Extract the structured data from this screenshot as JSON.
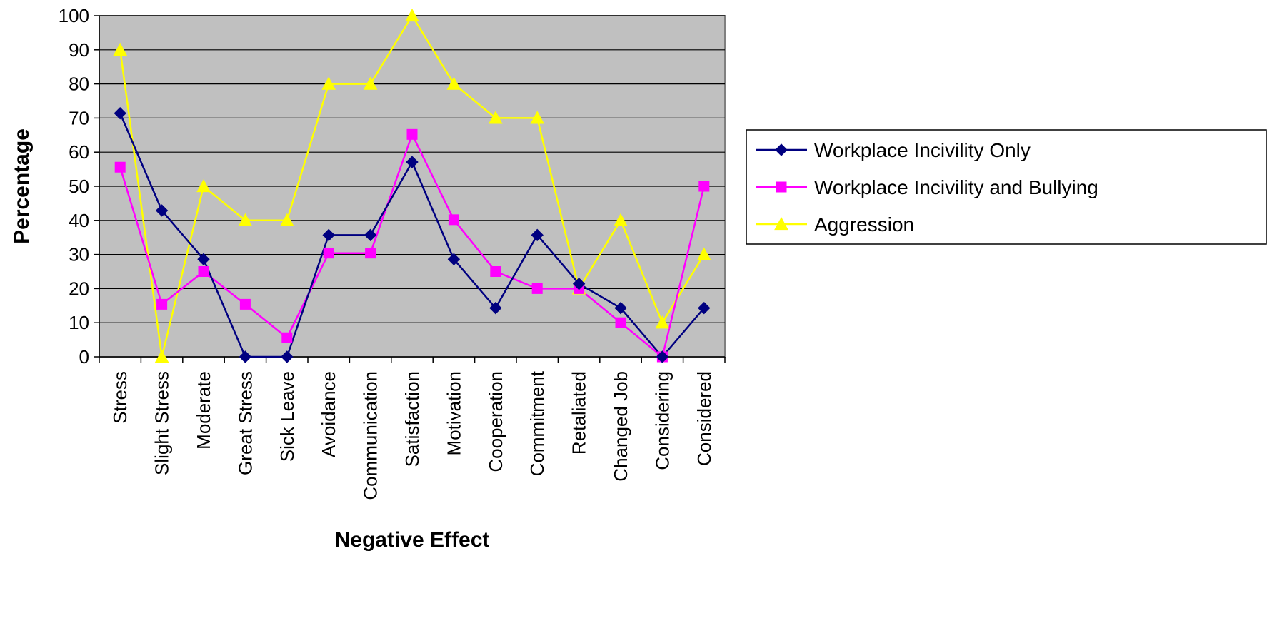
{
  "chart_data": {
    "type": "line",
    "title": "",
    "xlabel": "Negative Effect",
    "ylabel": "Percentage",
    "ylim": [
      0,
      100
    ],
    "yticks": [
      0,
      10,
      20,
      30,
      40,
      50,
      60,
      70,
      80,
      90,
      100
    ],
    "grid": true,
    "legend_position": "right",
    "plot_background": "#c0c0c0",
    "categories": [
      "Stress",
      "Slight Stress",
      "Moderate",
      "Great Stress",
      "Sick Leave",
      "Avoidance",
      "Communication",
      "Satisfaction",
      "Motivation",
      "Cooperation",
      "Commitment",
      "Retaliated",
      "Changed Job",
      "Considering",
      "Considered"
    ],
    "series": [
      {
        "name": "Workplace Incivility Only",
        "color": "#000080",
        "marker": "diamond",
        "values": [
          71.4,
          42.9,
          28.6,
          0,
          0,
          35.7,
          35.7,
          57.1,
          28.6,
          14.3,
          35.7,
          21.4,
          14.3,
          0,
          14.3
        ]
      },
      {
        "name": "Workplace Incivility and Bullying",
        "color": "#ff00ff",
        "marker": "square",
        "values": [
          55.6,
          15.4,
          25,
          15.4,
          5.6,
          30.4,
          30.4,
          65.2,
          40.2,
          25,
          20,
          20,
          10,
          0,
          50
        ]
      },
      {
        "name": "Aggression",
        "color": "#ffff00",
        "marker": "triangle",
        "values": [
          90,
          0,
          50,
          40,
          40,
          80,
          80,
          100,
          80,
          70,
          70,
          20,
          40,
          10,
          30
        ]
      }
    ]
  }
}
